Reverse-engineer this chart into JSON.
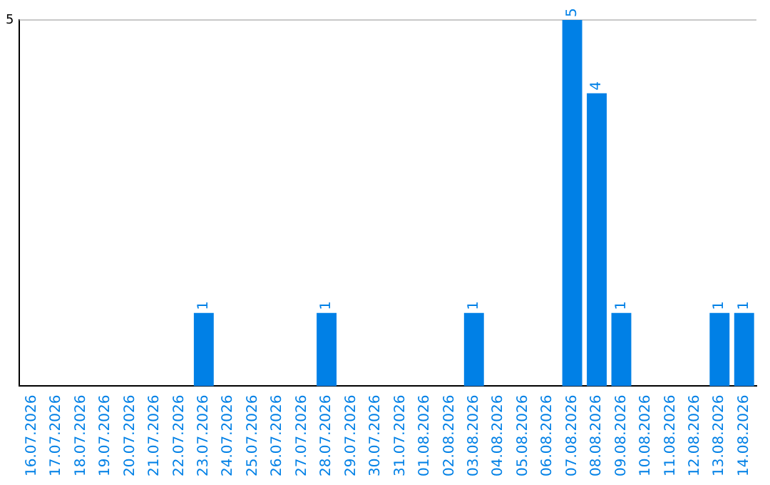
{
  "chart_data": {
    "type": "bar",
    "categories": [
      "16.07.2026",
      "17.07.2026",
      "18.07.2026",
      "19.07.2026",
      "20.07.2026",
      "21.07.2026",
      "22.07.2026",
      "23.07.2026",
      "24.07.2026",
      "25.07.2026",
      "26.07.2026",
      "27.07.2026",
      "28.07.2026",
      "29.07.2026",
      "30.07.2026",
      "31.07.2026",
      "01.08.2026",
      "02.08.2026",
      "03.08.2026",
      "04.08.2026",
      "05.08.2026",
      "06.08.2026",
      "07.08.2026",
      "08.08.2026",
      "09.08.2026",
      "10.08.2026",
      "11.08.2026",
      "12.08.2026",
      "13.08.2026",
      "14.08.2026"
    ],
    "values": [
      0,
      0,
      0,
      0,
      0,
      0,
      0,
      1,
      0,
      0,
      0,
      0,
      1,
      0,
      0,
      0,
      0,
      0,
      1,
      0,
      0,
      0,
      5,
      4,
      1,
      0,
      0,
      0,
      1,
      1
    ],
    "value_labels": [
      null,
      null,
      null,
      null,
      null,
      null,
      null,
      "1",
      null,
      null,
      null,
      null,
      "1",
      null,
      null,
      null,
      null,
      null,
      "1",
      null,
      null,
      null,
      "5",
      "4",
      "1",
      null,
      null,
      null,
      "1",
      "1"
    ],
    "color": "#0080e6",
    "ylim": [
      0,
      5
    ],
    "yticks": [
      5
    ],
    "ref_lines": [
      {
        "axis": "y",
        "value": 5,
        "color": "#c8c8c8"
      }
    ],
    "legend": false
  }
}
